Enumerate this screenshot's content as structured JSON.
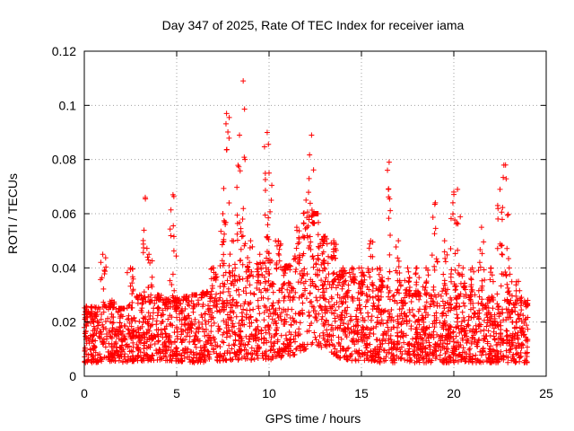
{
  "chart_data": {
    "type": "scatter",
    "title": "Day 347 of 2025, Rate Of TEC Index for receiver iama",
    "xlabel": "GPS time / hours",
    "ylabel": "ROTI / TECUs",
    "xlim": [
      0,
      25
    ],
    "ylim": [
      0,
      0.12
    ],
    "xticks": [
      "0",
      "5",
      "10",
      "15",
      "20",
      "25"
    ],
    "yticks": [
      "0",
      "0.02",
      "0.04",
      "0.06",
      "0.08",
      "0.1",
      "0.12"
    ],
    "grid": true,
    "marker": "plus",
    "color": "#ff0000",
    "x": [
      0.0,
      0.5,
      1.0,
      1.5,
      2.0,
      2.5,
      3.0,
      3.3,
      3.5,
      4.0,
      4.5,
      4.8,
      5.0,
      5.5,
      6.0,
      6.5,
      7.0,
      7.5,
      7.7,
      8.0,
      8.4,
      8.6,
      9.0,
      9.5,
      9.9,
      10.0,
      10.5,
      11.0,
      11.5,
      12.0,
      12.3,
      12.5,
      13.0,
      13.5,
      14.0,
      14.5,
      15.0,
      15.5,
      16.0,
      16.5,
      17.0,
      17.5,
      18.0,
      18.5,
      19.0,
      19.5,
      20.0,
      20.2,
      20.5,
      21.0,
      21.5,
      22.0,
      22.5,
      22.8,
      23.0,
      23.5,
      24.0
    ],
    "y": [
      0.018,
      0.02,
      0.045,
      0.028,
      0.025,
      0.04,
      0.03,
      0.066,
      0.045,
      0.03,
      0.025,
      0.067,
      0.025,
      0.028,
      0.03,
      0.03,
      0.04,
      0.06,
      0.097,
      0.05,
      0.089,
      0.109,
      0.05,
      0.045,
      0.09,
      0.075,
      0.05,
      0.04,
      0.055,
      0.065,
      0.089,
      0.06,
      0.04,
      0.05,
      0.04,
      0.04,
      0.04,
      0.05,
      0.04,
      0.079,
      0.05,
      0.04,
      0.04,
      0.04,
      0.064,
      0.05,
      0.068,
      0.069,
      0.04,
      0.04,
      0.055,
      0.04,
      0.069,
      0.078,
      0.04,
      0.035,
      0.028
    ],
    "baseline": {
      "description_values_only": true,
      "x": [
        0,
        2,
        4,
        6,
        8,
        10,
        11.5,
        12.5,
        14,
        16,
        18,
        20,
        22,
        24
      ],
      "low": [
        0.005,
        0.005,
        0.006,
        0.005,
        0.006,
        0.006,
        0.008,
        0.012,
        0.006,
        0.005,
        0.005,
        0.005,
        0.005,
        0.005
      ],
      "high": [
        0.026,
        0.025,
        0.028,
        0.03,
        0.035,
        0.038,
        0.042,
        0.06,
        0.035,
        0.033,
        0.03,
        0.03,
        0.028,
        0.026
      ]
    }
  }
}
